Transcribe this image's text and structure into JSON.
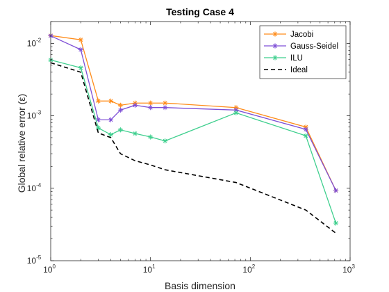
{
  "chart_data": {
    "type": "line",
    "title": "Testing Case 4",
    "xlabel": "Basis dimension",
    "ylabel": "Global relative error (ε)",
    "xscale": "log",
    "yscale": "log",
    "xlim": [
      1,
      1000
    ],
    "ylim": [
      1e-05,
      0.02
    ],
    "x_ticks": [
      {
        "value": 1,
        "base": "10",
        "exp": "0"
      },
      {
        "value": 10,
        "base": "10",
        "exp": "1"
      },
      {
        "value": 100,
        "base": "10",
        "exp": "2"
      },
      {
        "value": 1000,
        "base": "10",
        "exp": "3"
      }
    ],
    "y_ticks": [
      {
        "value": 1e-05,
        "base": "10",
        "exp": "-5"
      },
      {
        "value": 0.0001,
        "base": "10",
        "exp": "-4"
      },
      {
        "value": 0.001,
        "base": "10",
        "exp": "-3"
      },
      {
        "value": 0.01,
        "base": "10",
        "exp": "-2"
      }
    ],
    "grid": false,
    "legend_position": "top-right",
    "x": [
      1,
      2,
      3,
      4,
      5,
      7,
      10,
      14,
      72,
      360,
      720
    ],
    "series": [
      {
        "name": "Jacobi",
        "color": "#ff8c1a",
        "marker": "asterisk",
        "dash": "solid",
        "values": [
          0.0128,
          0.0112,
          0.0016,
          0.0016,
          0.0014,
          0.0015,
          0.0015,
          0.0015,
          0.0013,
          0.0007,
          9.3e-05
        ]
      },
      {
        "name": "Gauss-Seidel",
        "color": "#7e4fd6",
        "marker": "asterisk",
        "dash": "solid",
        "values": [
          0.0127,
          0.0082,
          0.00088,
          0.00088,
          0.0012,
          0.0014,
          0.0013,
          0.0013,
          0.0012,
          0.00065,
          9.3e-05
        ]
      },
      {
        "name": "ILU",
        "color": "#3fcf8e",
        "marker": "asterisk",
        "dash": "solid",
        "values": [
          0.0059,
          0.0046,
          0.00068,
          0.00055,
          0.00064,
          0.00057,
          0.00051,
          0.00045,
          0.0011,
          0.00053,
          3.3e-05
        ]
      },
      {
        "name": "Ideal",
        "color": "#000000",
        "marker": "none",
        "dash": "dashed",
        "values": [
          0.0054,
          0.004,
          0.00058,
          0.0005,
          0.0003,
          0.00024,
          0.00021,
          0.00018,
          0.00012,
          5e-05,
          2.4e-05
        ]
      }
    ]
  }
}
